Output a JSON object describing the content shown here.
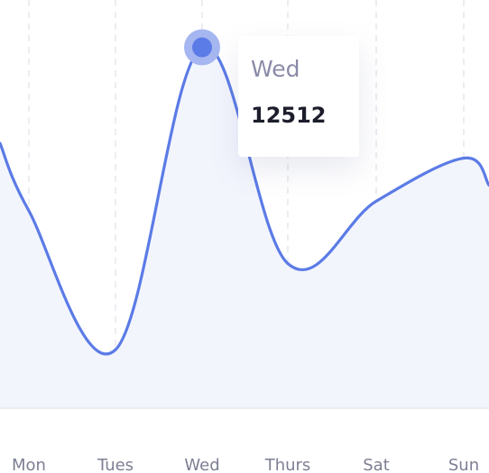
{
  "chart_data": {
    "type": "line",
    "categories": [
      "Mon",
      "Tues",
      "Wed",
      "Thurs",
      "Sat",
      "Sun"
    ],
    "series": [
      {
        "values": [
          9100,
          6200,
          12512,
          8000,
          9300,
          10200
        ]
      }
    ],
    "ylim": [
      5000,
      13500
    ],
    "grid": "vertical-dashed",
    "line_color": "#5b7be6",
    "fill_color": "#f3f5fd",
    "marker_color": "#5b7be6",
    "tooltip": {
      "day": "Wed",
      "value": "12512"
    }
  }
}
